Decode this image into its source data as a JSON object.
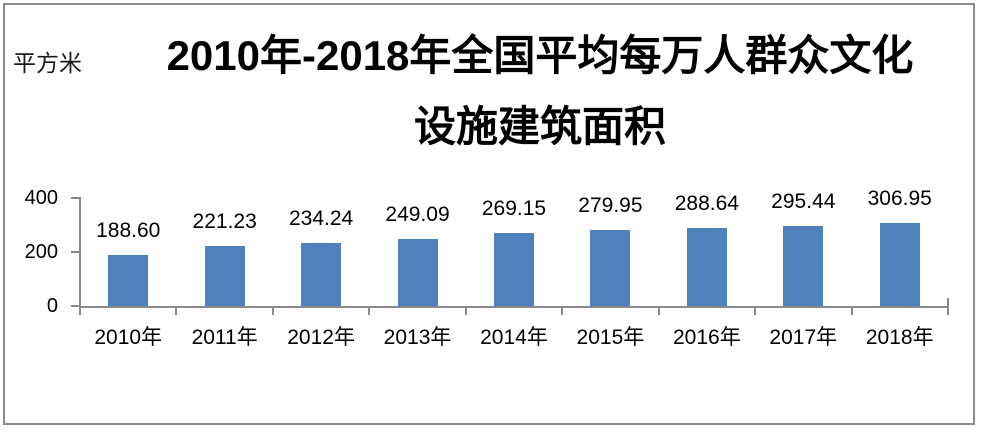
{
  "unit_label": "平方米",
  "title": {
    "line1": "2010年-2018年全国平均每万人群众文化",
    "line2": "设施建筑面积",
    "full": "2010年-2018年全国平均每万人群众文化设施建筑面积"
  },
  "chart_data": {
    "type": "bar",
    "title": "2010年-2018年全国平均每万人群众文化设施建筑面积",
    "unit": "平方米",
    "xlabel": "",
    "ylabel": "平方米",
    "categories": [
      "2010年",
      "2011年",
      "2012年",
      "2013年",
      "2014年",
      "2015年",
      "2016年",
      "2017年",
      "2018年"
    ],
    "values": [
      188.6,
      221.23,
      234.24,
      249.09,
      269.15,
      279.95,
      288.64,
      295.44,
      306.95
    ],
    "value_labels": [
      "188.60",
      "221.23",
      "234.24",
      "249.09",
      "269.15",
      "279.95",
      "288.64",
      "295.44",
      "306.95"
    ],
    "ylim": [
      0,
      400
    ],
    "yticks": [
      0,
      200,
      400
    ],
    "ytick_labels": [
      "0",
      "200",
      "400"
    ],
    "grid": false,
    "legend": false,
    "bar_color": "#4f81bd",
    "axis_color": "#8a8a8a",
    "text_color": "#000000"
  }
}
